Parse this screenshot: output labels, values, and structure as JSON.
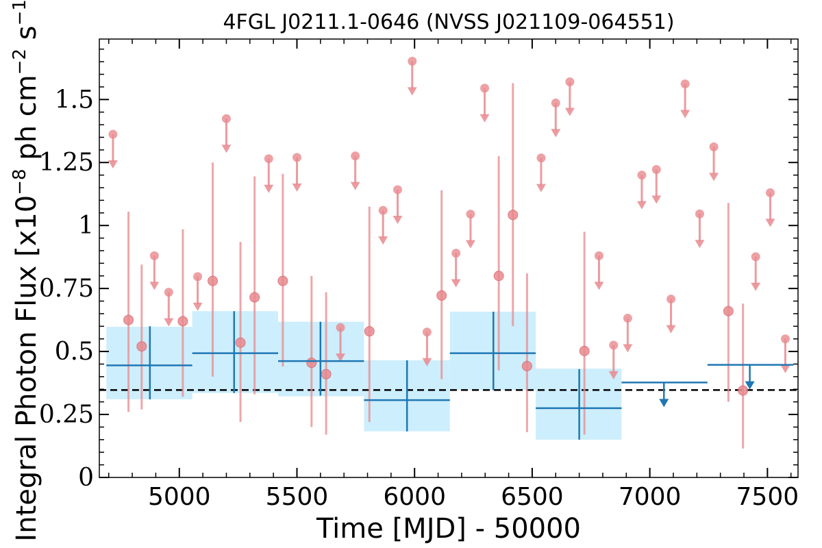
{
  "chart_data": {
    "type": "scatter",
    "title": "4FGL J0211.1-0646 (NVSS J021109-064551)",
    "xlabel": "Time [MJD] - 50000",
    "ylabel": "Integral Photon Flux [x10",
    "ylabel_exp1": "−8",
    "ylabel_mid": " ph cm",
    "ylabel_exp2": "−2",
    "ylabel_mid2": " s",
    "ylabel_exp3": "−1",
    "ylabel_end": "]",
    "xlim": [
      4660,
      7630
    ],
    "ylim": [
      0,
      1.74
    ],
    "xticks": [
      5000,
      5500,
      6000,
      6500,
      7000,
      7500
    ],
    "xtick_labels": [
      "5000",
      "5500",
      "6000",
      "6500",
      "7000",
      "7500"
    ],
    "yticks": [
      0,
      0.25,
      0.5,
      0.75,
      1,
      1.25,
      1.5
    ],
    "ytick_labels": [
      "0",
      "0.25",
      "0.5",
      "0.75",
      "1",
      "1.25",
      "1.5"
    ],
    "baseline": 0.347,
    "colors": {
      "short_bin": "#e88a8f",
      "long_bin": "#1f77b4",
      "band": "#cdeefc",
      "baseline": "#000000"
    },
    "short_bin_points": [
      {
        "x": 4718,
        "y": 1.362,
        "type": "ul"
      },
      {
        "x": 4784,
        "y": 0.625,
        "ylo": 0.26,
        "yhi": 1.055
      },
      {
        "x": 4840,
        "y": 0.52,
        "ylo": 0.27,
        "yhi": 0.845
      },
      {
        "x": 4894,
        "y": 0.88,
        "type": "ul"
      },
      {
        "x": 4955,
        "y": 0.735,
        "type": "ul"
      },
      {
        "x": 5015,
        "y": 0.62,
        "ylo": 0.32,
        "yhi": 0.985
      },
      {
        "x": 5078,
        "y": 0.797,
        "type": "ul"
      },
      {
        "x": 5142,
        "y": 0.78,
        "ylo": 0.4,
        "yhi": 1.25
      },
      {
        "x": 5200,
        "y": 1.424,
        "type": "ul"
      },
      {
        "x": 5260,
        "y": 0.535,
        "ylo": 0.22,
        "yhi": 0.935
      },
      {
        "x": 5320,
        "y": 0.715,
        "ylo": 0.33,
        "yhi": 1.195
      },
      {
        "x": 5380,
        "y": 1.265,
        "type": "ul"
      },
      {
        "x": 5440,
        "y": 0.78,
        "ylo": 0.44,
        "yhi": 1.205
      },
      {
        "x": 5500,
        "y": 1.27,
        "type": "ul"
      },
      {
        "x": 5562,
        "y": 0.455,
        "ylo": 0.2,
        "yhi": 0.8
      },
      {
        "x": 5624,
        "y": 0.41,
        "ylo": 0.17,
        "yhi": 0.735
      },
      {
        "x": 5685,
        "y": 0.595,
        "type": "ul"
      },
      {
        "x": 5748,
        "y": 1.276,
        "type": "ul"
      },
      {
        "x": 5808,
        "y": 0.58,
        "ylo": 0.22,
        "yhi": 1.075
      },
      {
        "x": 5866,
        "y": 1.06,
        "type": "ul"
      },
      {
        "x": 5928,
        "y": 1.142,
        "type": "ul"
      },
      {
        "x": 5990,
        "y": 1.652,
        "type": "ul"
      },
      {
        "x": 6053,
        "y": 0.577,
        "type": "ul"
      },
      {
        "x": 6115,
        "y": 0.722,
        "ylo": 0.39,
        "yhi": 1.14
      },
      {
        "x": 6176,
        "y": 0.89,
        "type": "ul"
      },
      {
        "x": 6238,
        "y": 1.045,
        "type": "ul"
      },
      {
        "x": 6298,
        "y": 1.545,
        "type": "ul"
      },
      {
        "x": 6358,
        "y": 0.8,
        "ylo": 0.425,
        "yhi": 1.275
      },
      {
        "x": 6418,
        "y": 1.042,
        "ylo": 0.6,
        "yhi": 1.565
      },
      {
        "x": 6478,
        "y": 0.442,
        "ylo": 0.18,
        "yhi": 0.81
      },
      {
        "x": 6538,
        "y": 1.268,
        "type": "ul"
      },
      {
        "x": 6600,
        "y": 1.486,
        "type": "ul"
      },
      {
        "x": 6660,
        "y": 1.57,
        "type": "ul"
      },
      {
        "x": 6722,
        "y": 0.502,
        "ylo": 0.17,
        "yhi": 0.975
      },
      {
        "x": 6784,
        "y": 0.88,
        "type": "ul"
      },
      {
        "x": 6846,
        "y": 0.525,
        "type": "ul"
      },
      {
        "x": 6906,
        "y": 0.632,
        "type": "ul"
      },
      {
        "x": 6966,
        "y": 1.2,
        "type": "ul"
      },
      {
        "x": 7028,
        "y": 1.222,
        "type": "ul"
      },
      {
        "x": 7090,
        "y": 0.708,
        "type": "ul"
      },
      {
        "x": 7150,
        "y": 1.562,
        "type": "ul"
      },
      {
        "x": 7212,
        "y": 1.046,
        "type": "ul"
      },
      {
        "x": 7272,
        "y": 1.312,
        "type": "ul"
      },
      {
        "x": 7334,
        "y": 0.66,
        "ylo": 0.3,
        "yhi": 1.09
      },
      {
        "x": 7396,
        "y": 0.345,
        "ylo": 0.115,
        "yhi": 0.69
      },
      {
        "x": 7450,
        "y": 0.876,
        "type": "ul"
      },
      {
        "x": 7512,
        "y": 1.13,
        "type": "ul"
      },
      {
        "x": 7576,
        "y": 0.55,
        "type": "ul"
      }
    ],
    "long_bin_points": [
      {
        "x": 4875,
        "xmin": 4690,
        "xmax": 5055,
        "y": 0.445,
        "ylo": 0.31,
        "yhi": 0.6,
        "band_lo": 0.31,
        "band_hi": 0.598
      },
      {
        "x": 5233,
        "xmin": 5055,
        "xmax": 5420,
        "y": 0.493,
        "ylo": 0.335,
        "yhi": 0.66,
        "band_lo": 0.335,
        "band_hi": 0.66
      },
      {
        "x": 5600,
        "xmin": 5420,
        "xmax": 5785,
        "y": 0.462,
        "ylo": 0.325,
        "yhi": 0.618,
        "band_lo": 0.322,
        "band_hi": 0.618
      },
      {
        "x": 5968,
        "xmin": 5785,
        "xmax": 6150,
        "y": 0.307,
        "ylo": 0.183,
        "yhi": 0.465,
        "band_lo": 0.183,
        "band_hi": 0.465
      },
      {
        "x": 6335,
        "xmin": 6150,
        "xmax": 6515,
        "y": 0.493,
        "ylo": 0.347,
        "yhi": 0.658,
        "band_lo": 0.347,
        "band_hi": 0.658
      },
      {
        "x": 6700,
        "xmin": 6515,
        "xmax": 6880,
        "y": 0.275,
        "ylo": 0.15,
        "yhi": 0.43,
        "band_lo": 0.15,
        "band_hi": 0.432
      },
      {
        "x": 7060,
        "xmin": 6880,
        "xmax": 7245,
        "y": 0.377,
        "type": "ul"
      },
      {
        "x": 7425,
        "xmin": 7245,
        "xmax": 7610,
        "y": 0.447,
        "type": "ul"
      }
    ]
  }
}
